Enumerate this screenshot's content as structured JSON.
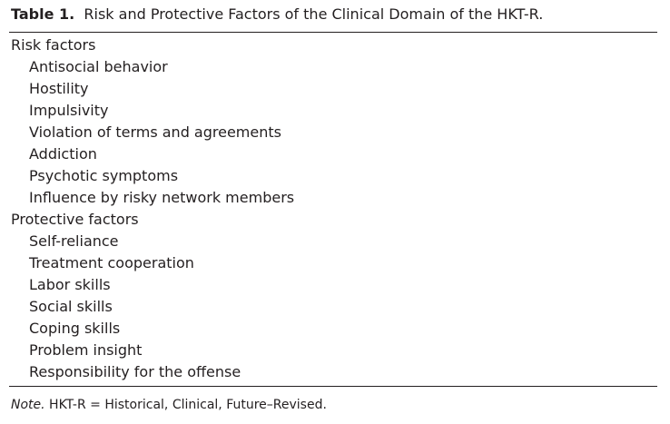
{
  "caption": {
    "label": "Table 1.",
    "text": "Risk and Protective Factors of the Clinical Domain of the HKT-R."
  },
  "groups": [
    {
      "heading": "Risk factors",
      "items": [
        "Antisocial behavior",
        "Hostility",
        "Impulsivity",
        "Violation of terms and agreements",
        "Addiction",
        "Psychotic symptoms",
        "Influence by risky network members"
      ]
    },
    {
      "heading": "Protective factors",
      "items": [
        "Self-reliance",
        "Treatment cooperation",
        "Labor skills",
        "Social skills",
        "Coping skills",
        "Problem insight",
        "Responsibility for the offense"
      ]
    }
  ],
  "note": {
    "label": "Note.",
    "text": "HKT-R = Historical, Clinical, Future–Revised."
  }
}
